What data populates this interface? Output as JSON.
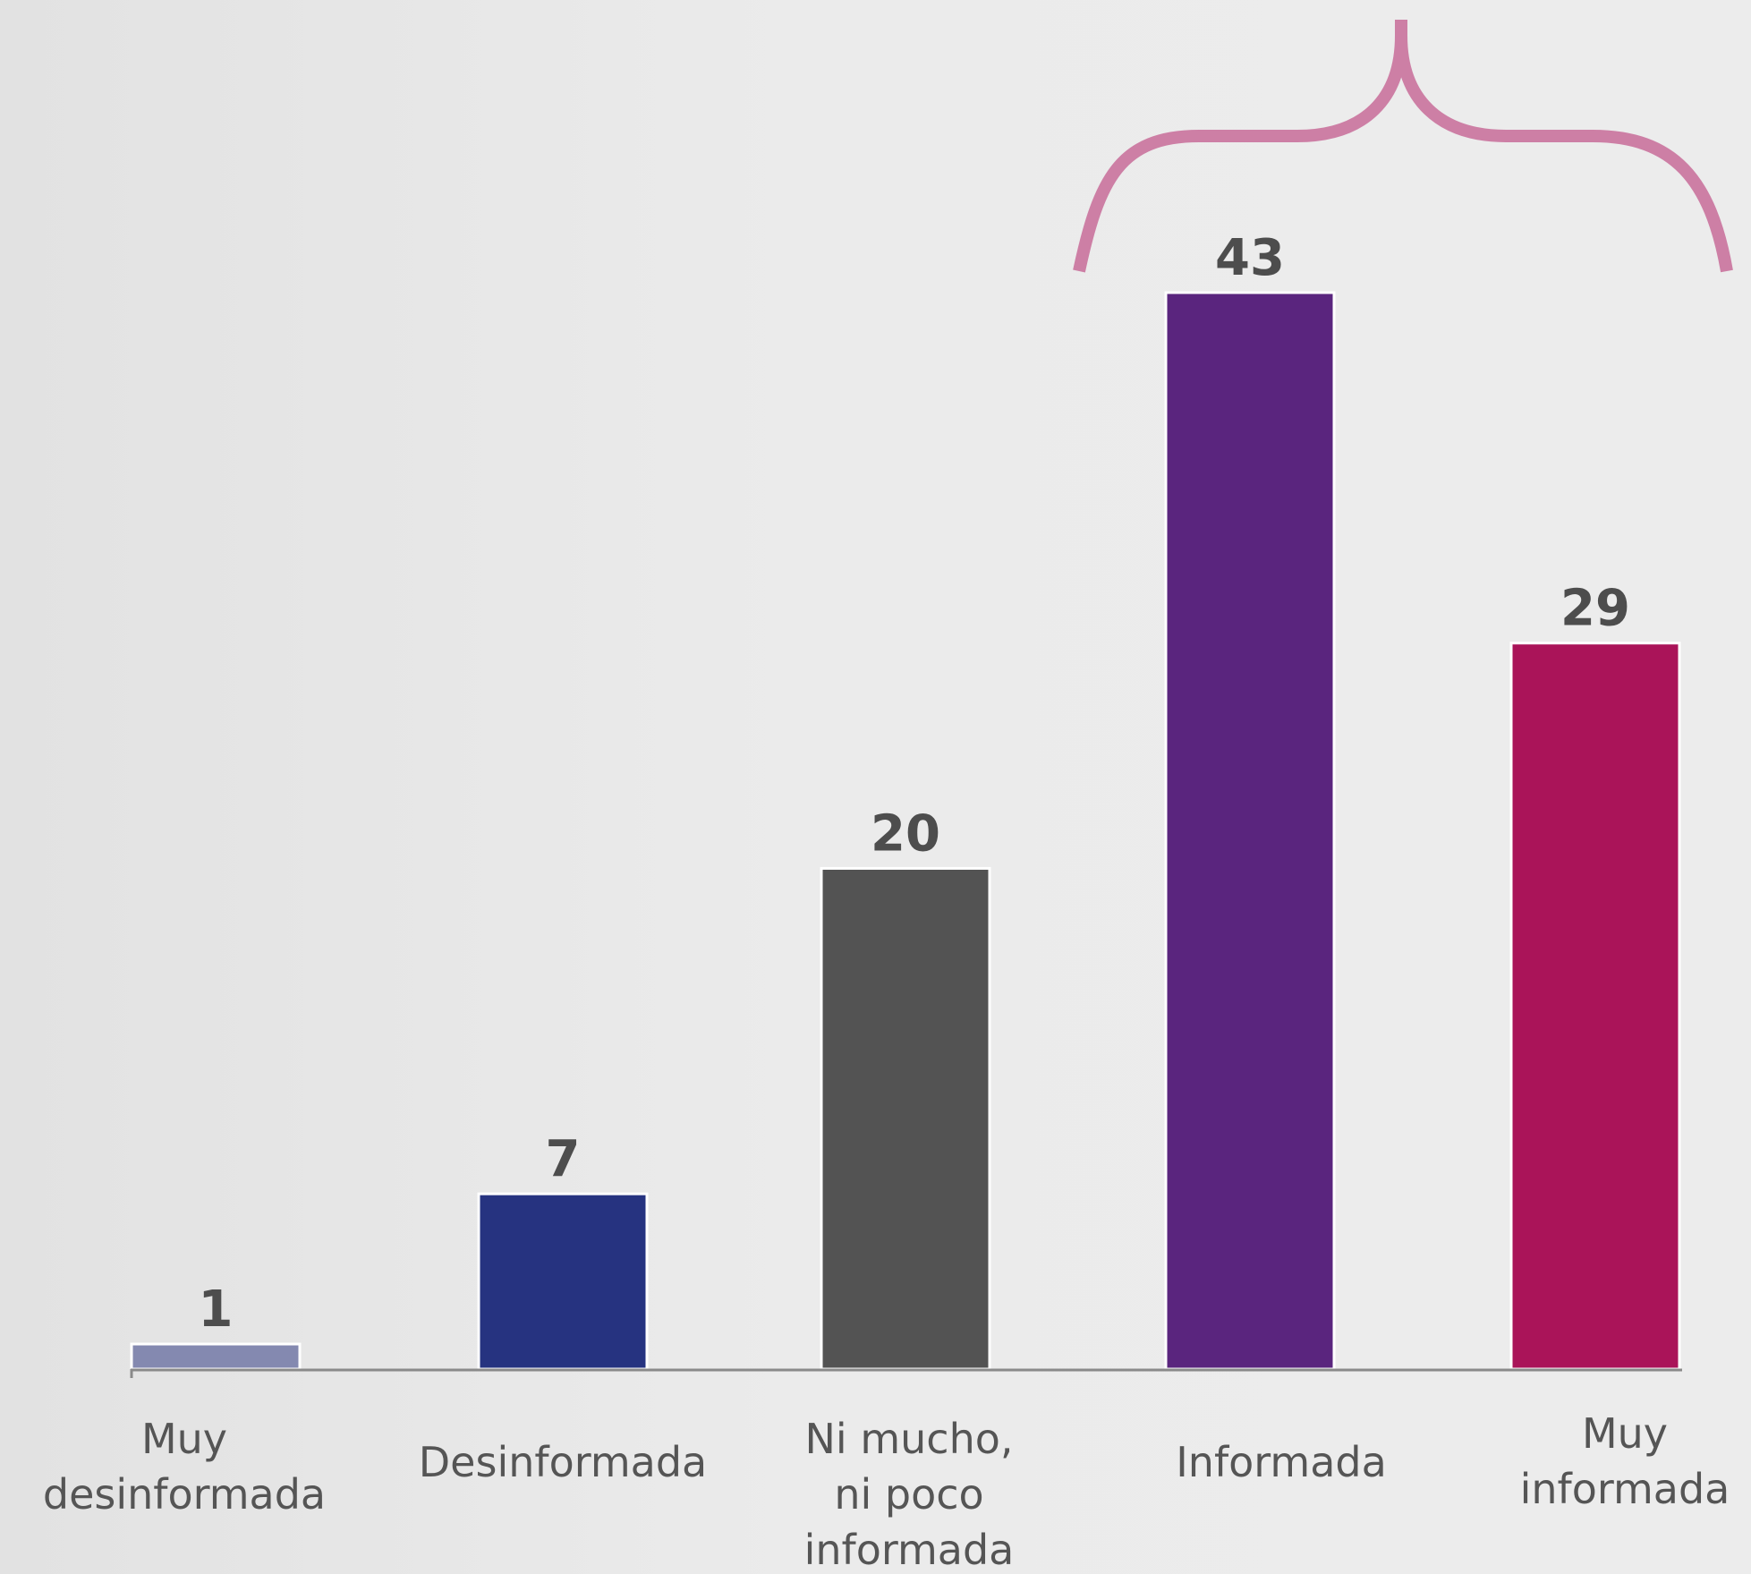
{
  "chart_data": {
    "type": "bar",
    "title": "",
    "xlabel": "",
    "ylabel": "",
    "ylim": [
      0,
      45
    ],
    "grid": false,
    "categories": [
      [
        "Muy",
        "desinformada"
      ],
      [
        "Desinformada"
      ],
      [
        "Ni mucho,",
        "ni poco",
        "informada"
      ],
      [
        "Informada"
      ],
      [
        "Muy",
        "informada"
      ]
    ],
    "values": [
      1,
      7,
      20,
      43,
      29
    ],
    "colors": [
      "#8489b0",
      "#263380",
      "#535353",
      "#5a257e",
      "#aa1459"
    ],
    "annotations": [
      {
        "type": "brace",
        "spans_categories": [
          3,
          4
        ],
        "color": "#cd7fa5"
      }
    ]
  }
}
